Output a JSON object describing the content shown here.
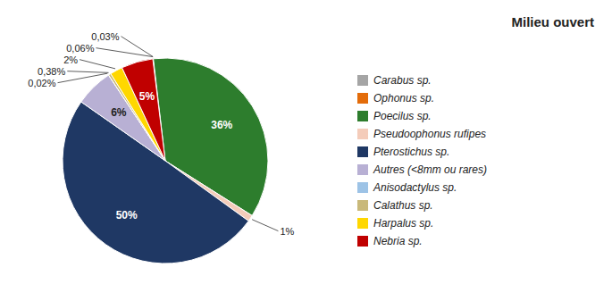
{
  "chart_data": {
    "type": "pie",
    "title": "Milieu ouvert",
    "categories": [
      "Carabus sp.",
      "Ophonus sp.",
      "Poecilus sp.",
      "Pseudoophonus rufipes",
      "Pterostichus sp.",
      "Autres (<8mm ou rares)",
      "Anisodactylus sp.",
      "Calathus sp.",
      "Harpalus sp.",
      "Nebria sp."
    ],
    "values": [
      0.06,
      0.03,
      36.0,
      1.0,
      50.0,
      6.0,
      0.02,
      0.38,
      2.0,
      5.0
    ],
    "value_labels": [
      "0,06%",
      "0,03%",
      "36%",
      "1%",
      "50%",
      "6%",
      "0,02%",
      "0,38%",
      "2%",
      "5%"
    ],
    "colors": [
      "#A5A5A5",
      "#E36C0A",
      "#2D7D2D",
      "#F4CCBA",
      "#1F3864",
      "#B8B0D4",
      "#9DC3E6",
      "#C9B97A",
      "#FFD700",
      "#C00000"
    ],
    "legend": "right",
    "data_labels": true
  }
}
